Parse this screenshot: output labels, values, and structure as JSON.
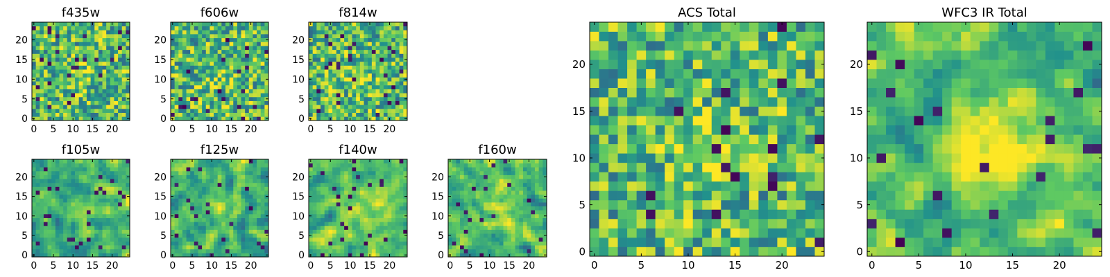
{
  "figure": {
    "colormap": "viridis",
    "colors": [
      "#440154",
      "#3b528b",
      "#21918c",
      "#5ec962",
      "#fde725"
    ]
  },
  "chart_data": [
    {
      "type": "heatmap",
      "title": "f435w",
      "grid": [
        25,
        25
      ],
      "xlim": [
        0,
        24
      ],
      "ylim": [
        0,
        24
      ],
      "xticks": [
        0,
        5,
        10,
        15,
        20
      ],
      "yticks": [
        0,
        5,
        10,
        15,
        20
      ],
      "blob": [
        12,
        11
      ],
      "kind": "noisy"
    },
    {
      "type": "heatmap",
      "title": "f606w",
      "grid": [
        25,
        25
      ],
      "xlim": [
        0,
        24
      ],
      "ylim": [
        0,
        24
      ],
      "xticks": [
        0,
        5,
        10,
        15,
        20
      ],
      "yticks": [
        0,
        5,
        10,
        15,
        20
      ],
      "blob": [
        12,
        11
      ],
      "kind": "noisy"
    },
    {
      "type": "heatmap",
      "title": "f814w",
      "grid": [
        25,
        25
      ],
      "xlim": [
        0,
        24
      ],
      "ylim": [
        0,
        24
      ],
      "xticks": [
        0,
        5,
        10,
        15,
        20
      ],
      "yticks": [
        0,
        5,
        10,
        15,
        20
      ],
      "blob": [
        12,
        11
      ],
      "kind": "noisy"
    },
    {
      "type": "heatmap",
      "title": "f105w",
      "grid": [
        25,
        25
      ],
      "xlim": [
        0,
        24
      ],
      "ylim": [
        0,
        24
      ],
      "xticks": [
        0,
        5,
        10,
        15,
        20
      ],
      "yticks": [
        0,
        5,
        10,
        15,
        20
      ],
      "blob": [
        13,
        12
      ],
      "kind": "smooth"
    },
    {
      "type": "heatmap",
      "title": "f125w",
      "grid": [
        25,
        25
      ],
      "xlim": [
        0,
        24
      ],
      "ylim": [
        0,
        24
      ],
      "xticks": [
        0,
        5,
        10,
        15,
        20
      ],
      "yticks": [
        0,
        5,
        10,
        15,
        20
      ],
      "blob": [
        13,
        12
      ],
      "kind": "smooth"
    },
    {
      "type": "heatmap",
      "title": "f140w",
      "grid": [
        25,
        25
      ],
      "xlim": [
        0,
        24
      ],
      "ylim": [
        0,
        24
      ],
      "xticks": [
        0,
        5,
        10,
        15,
        20
      ],
      "yticks": [
        0,
        5,
        10,
        15,
        20
      ],
      "blob": [
        13,
        12
      ],
      "kind": "smooth"
    },
    {
      "type": "heatmap",
      "title": "f160w",
      "grid": [
        25,
        25
      ],
      "xlim": [
        0,
        24
      ],
      "ylim": [
        0,
        24
      ],
      "xticks": [
        0,
        5,
        10,
        15,
        20
      ],
      "yticks": [
        0,
        5,
        10,
        15,
        20
      ],
      "blob": [
        13,
        12
      ],
      "kind": "smooth"
    },
    {
      "type": "heatmap",
      "title": "ACS Total",
      "grid": [
        25,
        25
      ],
      "xlim": [
        0,
        24
      ],
      "ylim": [
        0,
        24
      ],
      "xticks": [
        0,
        5,
        10,
        15,
        20
      ],
      "yticks": [
        0,
        5,
        10,
        15,
        20
      ],
      "blob": [
        12,
        11
      ],
      "kind": "total"
    },
    {
      "type": "heatmap",
      "title": "WFC3 IR Total",
      "grid": [
        25,
        25
      ],
      "xlim": [
        0,
        24
      ],
      "ylim": [
        0,
        24
      ],
      "xticks": [
        0,
        5,
        10,
        15,
        20
      ],
      "yticks": [
        0,
        5,
        10,
        15,
        20
      ],
      "blob": [
        13,
        12
      ],
      "kind": "total_smooth"
    }
  ]
}
